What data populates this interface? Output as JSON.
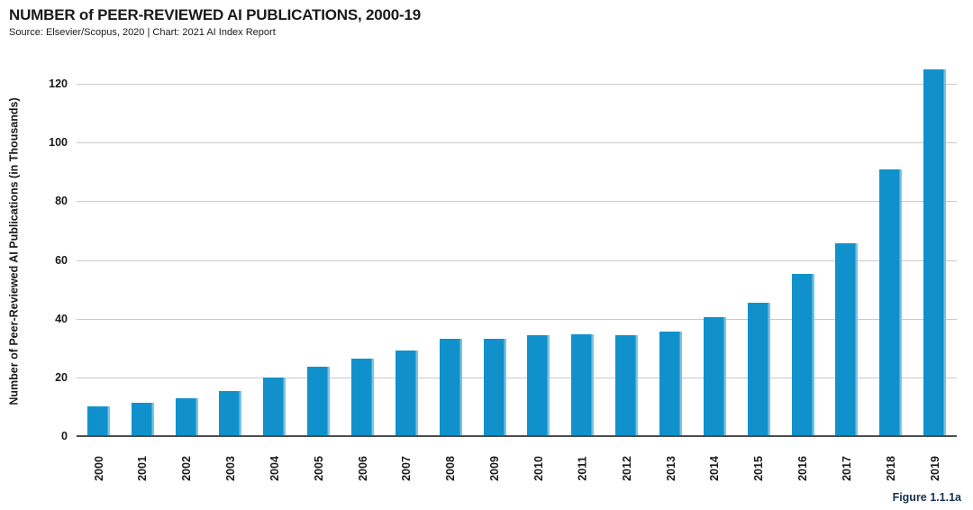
{
  "header": {
    "title": "NUMBER of PEER-REVIEWED AI PUBLICATIONS, 2000-19",
    "subtitle": "Source: Elsevier/Scopus, 2020 | Chart: 2021 AI Index Report"
  },
  "figure_label": "Figure 1.1.1a",
  "colors": {
    "bar": "#1191cb",
    "bar_edge_highlight": "#7cc3e2",
    "gridline": "#c9c9c9",
    "axis_line": "#4d4d4d",
    "text": "#1a1a1a",
    "figure_label": "#16324f"
  },
  "chart_data": {
    "type": "bar",
    "title": "NUMBER of PEER-REVIEWED AI PUBLICATIONS, 2000-19",
    "subtitle": "Source: Elsevier/Scopus, 2020 | Chart: 2021 AI Index Report",
    "categories": [
      "2000",
      "2001",
      "2002",
      "2003",
      "2004",
      "2005",
      "2006",
      "2007",
      "2008",
      "2009",
      "2010",
      "2011",
      "2012",
      "2013",
      "2014",
      "2015",
      "2016",
      "2017",
      "2018",
      "2019"
    ],
    "values": [
      10.0,
      11.3,
      13.0,
      15.3,
      20.0,
      23.7,
      26.3,
      29.1,
      33.3,
      33.3,
      34.4,
      34.8,
      34.4,
      35.7,
      40.6,
      45.4,
      55.2,
      65.7,
      90.8,
      125.0
    ],
    "xlabel": "",
    "ylabel": "Number of Peer-Reviewed AI Publications (in Thousands)",
    "ylim": [
      0,
      120
    ],
    "yticks": [
      0,
      20,
      40,
      60,
      80,
      100,
      120
    ],
    "grid": true,
    "legend_position": "none",
    "annotation": "Figure 1.1.1a"
  }
}
